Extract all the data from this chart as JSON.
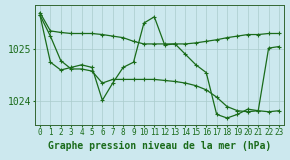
{
  "background_color": "#cce8ee",
  "grid_color": "#aacccc",
  "line_color": "#1a6b1a",
  "xlabel": "Graphe pression niveau de la mer (hPa)",
  "xlabel_fontsize": 7,
  "ytick_fontsize": 7,
  "xtick_fontsize": 5.5,
  "ylim": [
    1023.55,
    1025.85
  ],
  "xlim": [
    -0.5,
    23.5
  ],
  "yticks": [
    1024,
    1025
  ],
  "xticks": [
    0,
    1,
    2,
    3,
    4,
    5,
    6,
    7,
    8,
    9,
    10,
    11,
    12,
    13,
    14,
    15,
    16,
    17,
    18,
    19,
    20,
    21,
    22,
    23
  ],
  "series1": {
    "x": [
      0,
      1,
      2,
      3,
      4,
      5,
      6,
      7,
      8,
      9,
      10,
      11,
      12,
      13,
      14,
      15,
      16,
      17,
      18,
      19,
      20,
      21,
      22,
      23
    ],
    "y": [
      1025.7,
      1025.35,
      1025.32,
      1025.3,
      1025.3,
      1025.3,
      1025.28,
      1025.25,
      1025.22,
      1025.15,
      1025.1,
      1025.1,
      1025.1,
      1025.1,
      1025.1,
      1025.12,
      1025.15,
      1025.18,
      1025.22,
      1025.25,
      1025.28,
      1025.28,
      1025.3,
      1025.3
    ]
  },
  "series2": {
    "x": [
      0,
      1,
      2,
      3,
      4,
      5,
      6,
      7,
      8,
      9,
      10,
      11,
      12,
      13,
      14,
      15,
      16,
      17,
      18,
      19,
      20,
      21,
      22,
      23
    ],
    "y": [
      1025.65,
      1024.75,
      1024.6,
      1024.65,
      1024.7,
      1024.65,
      1024.02,
      1024.35,
      1024.65,
      1024.75,
      1025.5,
      1025.62,
      1025.08,
      1025.1,
      1024.9,
      1024.7,
      1024.55,
      1023.75,
      1023.68,
      1023.75,
      1023.85,
      1023.82,
      1025.02,
      1025.05
    ]
  },
  "series3": {
    "x": [
      0,
      1,
      2,
      3,
      4,
      5,
      6,
      7,
      8,
      9,
      10,
      11,
      12,
      13,
      14,
      15,
      16,
      17,
      18,
      19,
      20,
      21,
      22,
      23
    ],
    "y": [
      1025.65,
      1025.25,
      1024.78,
      1024.62,
      1024.62,
      1024.58,
      1024.35,
      1024.42,
      1024.42,
      1024.42,
      1024.42,
      1024.42,
      1024.4,
      1024.38,
      1024.35,
      1024.3,
      1024.22,
      1024.08,
      1023.9,
      1023.82,
      1023.8,
      1023.82,
      1023.8,
      1023.82
    ]
  }
}
